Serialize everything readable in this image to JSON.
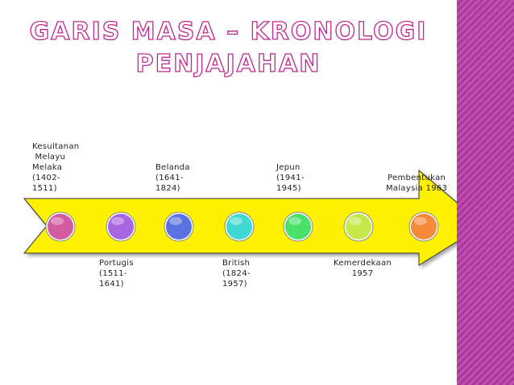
{
  "title": {
    "line1": "GARIS MASA – KRONOLOGI",
    "line2": "PENJAJAHAN"
  },
  "timeline": {
    "top_labels": [
      "Kesultanan\n Melayu\nMelaka\n(1402-\n1511)",
      "Belanda\n(1641-\n1824)",
      "Jepun\n(1941-\n1945)",
      "Pembentukan\nMalaysia 1963"
    ],
    "bottom_labels": [
      "Portugis\n(1511-\n1641)",
      "British\n(1824-\n1957)",
      "Kemerdekaan\n1957"
    ],
    "dot_colors": [
      "#d35a9e",
      "#a866e0",
      "#5a73e0",
      "#3fd9d2",
      "#4ae06a",
      "#c7e84a",
      "#f58a3a"
    ],
    "arrow_color": "#fff200",
    "accent_color": "#b8439f"
  }
}
